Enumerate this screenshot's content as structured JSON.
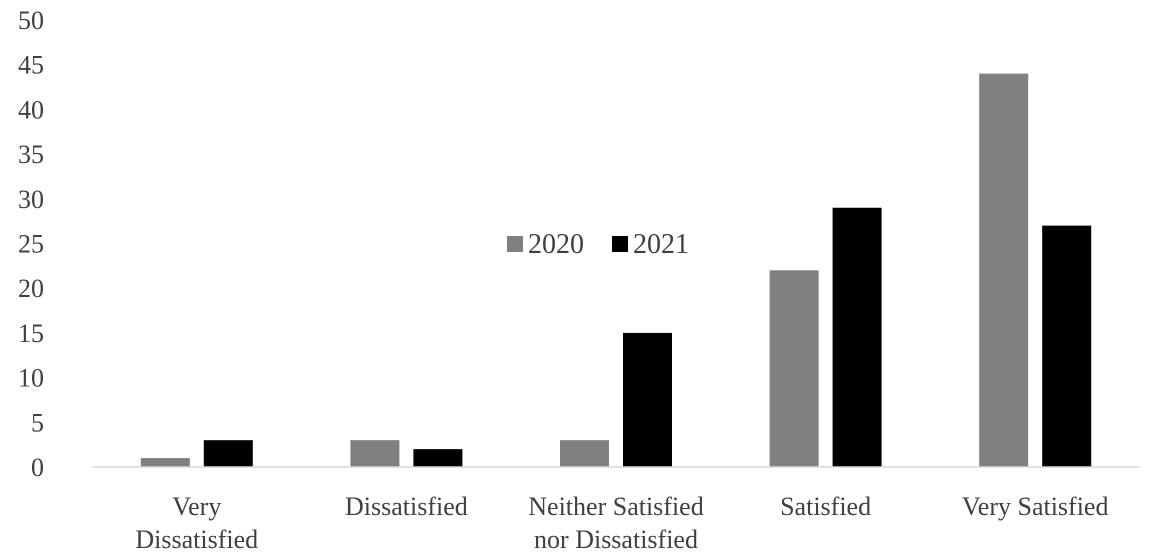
{
  "chart_data": {
    "type": "bar",
    "title": "",
    "xlabel": "",
    "ylabel": "",
    "ylim": [
      0,
      50
    ],
    "yticks": [
      0,
      5,
      10,
      15,
      20,
      25,
      30,
      35,
      40,
      45,
      50
    ],
    "grid": false,
    "legend_position": "center",
    "categories": [
      [
        "Very",
        "Dissatisfied"
      ],
      [
        "Dissatisfied"
      ],
      [
        "Neither Satisfied",
        "nor Dissatisfied"
      ],
      [
        "Satisfied"
      ],
      [
        "Very Satisfied"
      ]
    ],
    "series": [
      {
        "name": "2020",
        "color": "#808080",
        "values": [
          1,
          3,
          3,
          22,
          44
        ]
      },
      {
        "name": "2021",
        "color": "#000000",
        "values": [
          3,
          2,
          15,
          29,
          27
        ]
      }
    ]
  }
}
